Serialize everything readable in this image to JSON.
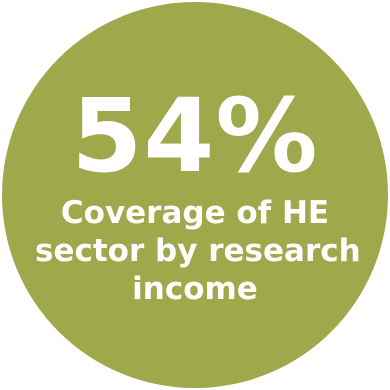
{
  "stat": {
    "value": "54%",
    "caption_lines": [
      "Coverage of HE",
      "sector by research",
      "income"
    ]
  },
  "colors": {
    "circle": "#9fa84a",
    "text": "#ffffff",
    "background": "#ffffff"
  }
}
